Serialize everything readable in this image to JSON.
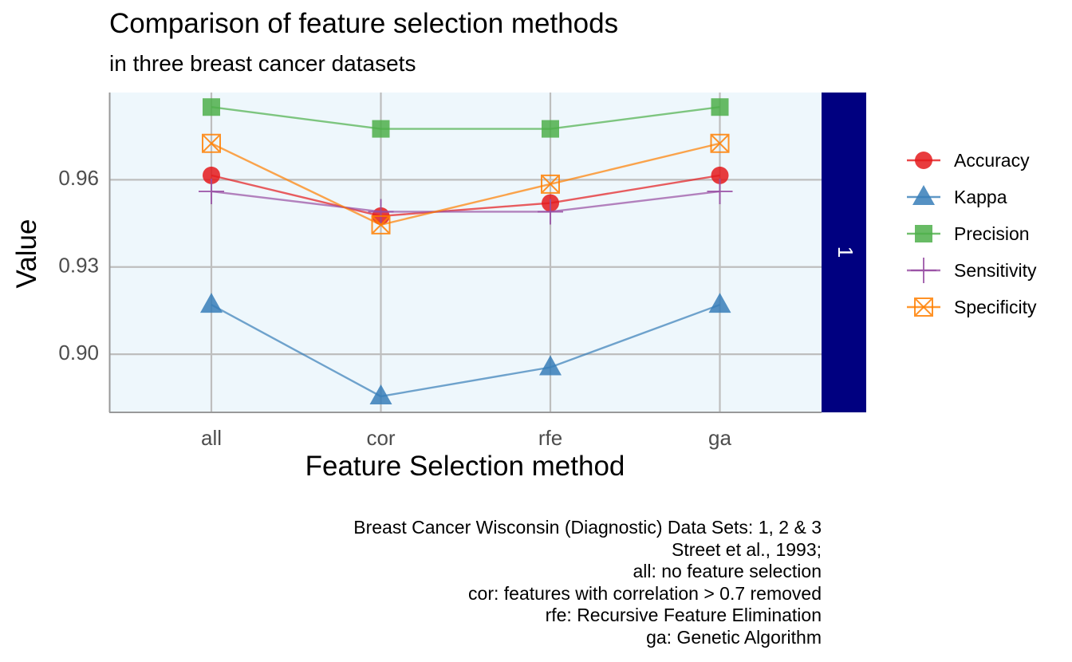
{
  "title": "Comparison of feature selection methods",
  "subtitle": "in three breast cancer datasets",
  "caption": [
    "Breast Cancer Wisconsin (Diagnostic) Data Sets: 1, 2 & 3",
    "Street et al., 1993;",
    "all: no feature selection",
    "cor: features with correlation > 0.7 removed",
    "rfe: Recursive Feature Elimination",
    "ga: Genetic Algorithm"
  ],
  "colors": {
    "panel_background": "#EEF7FC",
    "grid": "#BEBEBE",
    "strip": "#000080",
    "strip_text": "#FFFFFF"
  },
  "chart_data": {
    "type": "line",
    "title": "Comparison of feature selection methods",
    "subtitle": "in three breast cancer datasets",
    "xlabel": "Feature Selection method",
    "ylabel": "Value",
    "categories": [
      "all",
      "cor",
      "rfe",
      "ga"
    ],
    "ylim": [
      0.88,
      0.99
    ],
    "yticks": [
      0.9,
      0.93,
      0.96
    ],
    "ytick_labels": [
      "0.90",
      "0.93",
      "0.96"
    ],
    "facet_label": "1",
    "grid": true,
    "legend_position": "right",
    "series": [
      {
        "name": "Accuracy",
        "color": "#E41A1C",
        "shape": "circle",
        "values": [
          0.9615,
          0.9475,
          0.952,
          0.9615
        ]
      },
      {
        "name": "Kappa",
        "color": "#377EB8",
        "shape": "triangle",
        "values": [
          0.917,
          0.8855,
          0.8955,
          0.917
        ]
      },
      {
        "name": "Precision",
        "color": "#4DAF4A",
        "shape": "square",
        "values": [
          0.985,
          0.9775,
          0.9775,
          0.985
        ]
      },
      {
        "name": "Sensitivity",
        "color": "#984EA3",
        "shape": "plus",
        "values": [
          0.956,
          0.949,
          0.949,
          0.956
        ]
      },
      {
        "name": "Specificity",
        "color": "#FF7F00",
        "shape": "boxcross",
        "values": [
          0.9725,
          0.9445,
          0.9585,
          0.9725
        ]
      }
    ]
  }
}
